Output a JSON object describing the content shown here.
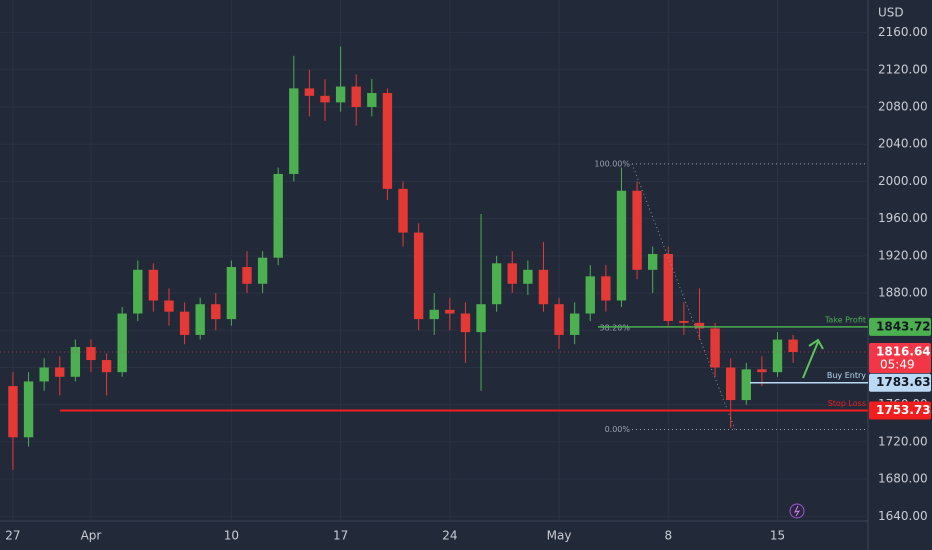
{
  "chart_data": {
    "type": "candlestick",
    "currency": "USD",
    "x": [
      0,
      1,
      2,
      3,
      4,
      5,
      6,
      7,
      8,
      9,
      10,
      11,
      12,
      13,
      14,
      15,
      16,
      17,
      18,
      19,
      20,
      21,
      22,
      23,
      24,
      25,
      26,
      27,
      28,
      29,
      30,
      31,
      32,
      33,
      34,
      35,
      36,
      37,
      38,
      39,
      40,
      41,
      42,
      43,
      44,
      45,
      46,
      47,
      48,
      49,
      50
    ],
    "open": [
      1780,
      1725,
      1785,
      1800,
      1790,
      1822,
      1808,
      1795,
      1858,
      1905,
      1872,
      1860,
      1835,
      1868,
      1852,
      1908,
      1890,
      1918,
      2008,
      2100,
      2092,
      2085,
      2102,
      2080,
      2095,
      1992,
      1945,
      1852,
      1862,
      1858,
      1838,
      1868,
      1912,
      1890,
      1905,
      1868,
      1835,
      1858,
      1898,
      1872,
      1990,
      1905,
      1922,
      1850,
      1848,
      1842,
      1800,
      1765,
      1798,
      1795,
      1830
    ],
    "high": [
      1795,
      1795,
      1810,
      1812,
      1830,
      1830,
      1815,
      1865,
      1915,
      1912,
      1885,
      1870,
      1875,
      1880,
      1915,
      1925,
      1925,
      2015,
      2135,
      2120,
      2110,
      2145,
      2115,
      2110,
      2100,
      2000,
      1955,
      1880,
      1875,
      1870,
      1965,
      1920,
      1925,
      1915,
      1935,
      1875,
      1870,
      1910,
      1910,
      2015,
      2000,
      1930,
      1930,
      1870,
      1885,
      1848,
      1810,
      1805,
      1812,
      1838,
      1835
    ],
    "low": [
      1690,
      1715,
      1775,
      1770,
      1785,
      1795,
      1770,
      1790,
      1850,
      1860,
      1845,
      1825,
      1830,
      1840,
      1845,
      1880,
      1880,
      1910,
      2000,
      2070,
      2065,
      2075,
      2060,
      2070,
      1980,
      1930,
      1840,
      1835,
      1840,
      1805,
      1775,
      1860,
      1880,
      1878,
      1860,
      1820,
      1825,
      1850,
      1860,
      1865,
      1895,
      1880,
      1845,
      1835,
      1830,
      1790,
      1735,
      1760,
      1780,
      1790,
      1805
    ],
    "close": [
      1725,
      1785,
      1800,
      1790,
      1822,
      1808,
      1795,
      1858,
      1905,
      1872,
      1860,
      1835,
      1868,
      1852,
      1908,
      1890,
      1918,
      2008,
      2100,
      2092,
      2085,
      2102,
      2080,
      2095,
      1992,
      1945,
      1852,
      1862,
      1858,
      1838,
      1868,
      1912,
      1890,
      1905,
      1868,
      1835,
      1858,
      1898,
      1872,
      1990,
      1905,
      1922,
      1850,
      1848,
      1842,
      1800,
      1765,
      1798,
      1795,
      1830,
      1816.64
    ],
    "up_color": "#4caf50",
    "down_color": "#e53935",
    "xlim": [
      -0.83,
      54.8
    ],
    "xticks": [
      {
        "value": 0,
        "label": "27"
      },
      {
        "value": 5,
        "label": "Apr"
      },
      {
        "value": 14,
        "label": "10"
      },
      {
        "value": 21,
        "label": "17"
      },
      {
        "value": 28,
        "label": "24"
      },
      {
        "value": 35,
        "label": "May"
      },
      {
        "value": 42,
        "label": "8"
      },
      {
        "value": 49,
        "label": "15"
      }
    ],
    "ylim": [
      1635,
      2195
    ],
    "yticks": [
      {
        "value": 1640,
        "label": "1640.00"
      },
      {
        "value": 1680,
        "label": "1680.00"
      },
      {
        "value": 1720,
        "label": "1720.00"
      },
      {
        "value": 1760,
        "label": "1760.00"
      },
      {
        "value": 1800,
        "label": "1800.00"
      },
      {
        "value": 1840,
        "label": "1840.00"
      },
      {
        "value": 1880,
        "label": "1880.00"
      },
      {
        "value": 1920,
        "label": "1920.00"
      },
      {
        "value": 1960,
        "label": "1960.00"
      },
      {
        "value": 2000,
        "label": "2000.00"
      },
      {
        "value": 2040,
        "label": "2040.00"
      },
      {
        "value": 2080,
        "label": "2080.00"
      },
      {
        "value": 2120,
        "label": "2120.00"
      },
      {
        "value": 2160,
        "label": "2160.00"
      }
    ],
    "grid": true,
    "last": {
      "value": 1816.64,
      "countdown": "05:49",
      "color": "#f23645"
    },
    "levels": [
      {
        "name": "Take Profit",
        "value": 1843.72,
        "color": "#4caf50"
      },
      {
        "name": "Buy Entry",
        "value": 1783.63,
        "color": "#bbd9f5"
      },
      {
        "name": "Stop Loss",
        "value": 1753.73,
        "color": "#f21d1d"
      }
    ],
    "fib": [
      {
        "value": 2018.9,
        "label": "100.00%"
      },
      {
        "value": 1842.5,
        "label": "38.20%"
      },
      {
        "value": 1733.4,
        "label": "0.00%"
      }
    ]
  }
}
